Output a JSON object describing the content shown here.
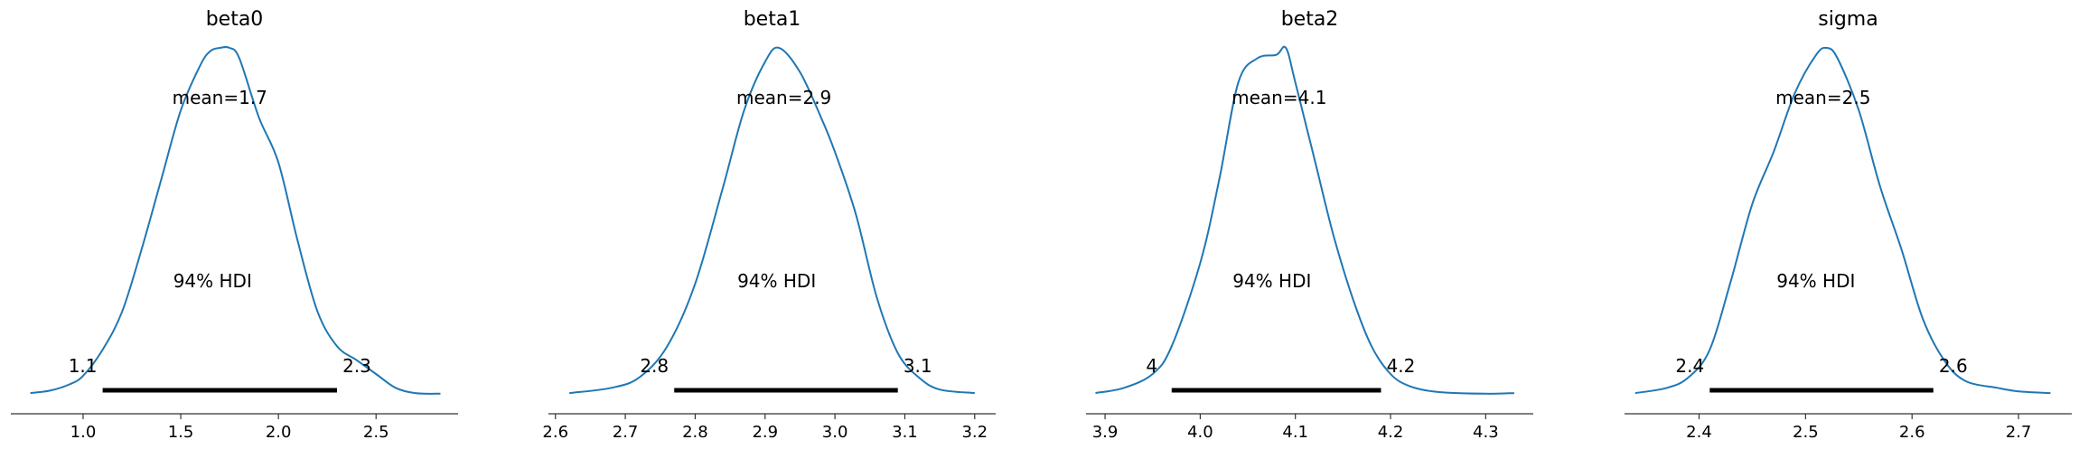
{
  "chart_data": [
    {
      "type": "line",
      "title": "beta0",
      "xlabel": "",
      "ylabel": "",
      "xlim": [
        0.63,
        2.92
      ],
      "xticks": [
        1.0,
        1.5,
        2.0,
        2.5
      ],
      "xtick_labels": [
        "1.0",
        "1.5",
        "2.0",
        "2.5"
      ],
      "mean_label": "mean=1.7",
      "hdi_label": "94% HDI",
      "hdi": [
        1.1,
        2.3
      ],
      "hdi_labels": [
        "1.1",
        "2.3"
      ],
      "density": {
        "x": [
          0.73,
          0.83,
          0.93,
          1.0,
          1.1,
          1.2,
          1.3,
          1.4,
          1.5,
          1.6,
          1.65,
          1.7,
          1.75,
          1.8,
          1.9,
          2.0,
          2.1,
          2.2,
          2.3,
          2.4,
          2.5,
          2.6,
          2.7,
          2.83
        ],
        "y": [
          0.005,
          0.012,
          0.03,
          0.055,
          0.13,
          0.24,
          0.42,
          0.62,
          0.82,
          0.95,
          0.99,
          1.0,
          1.0,
          0.97,
          0.8,
          0.67,
          0.44,
          0.24,
          0.14,
          0.1,
          0.06,
          0.02,
          0.005,
          0.003
        ]
      }
    },
    {
      "type": "line",
      "title": "beta1",
      "xlabel": "",
      "ylabel": "",
      "xlim": [
        2.59,
        3.23
      ],
      "xticks": [
        2.6,
        2.7,
        2.8,
        2.9,
        3.0,
        3.1,
        3.2
      ],
      "xtick_labels": [
        "2.6",
        "2.7",
        "2.8",
        "2.9",
        "3.0",
        "3.1",
        "3.2"
      ],
      "mean_label": "mean=2.9",
      "hdi_label": "94% HDI",
      "hdi": [
        2.77,
        3.09
      ],
      "hdi_labels": [
        "2.8",
        "3.1"
      ],
      "density": {
        "x": [
          2.62,
          2.68,
          2.72,
          2.76,
          2.8,
          2.84,
          2.87,
          2.9,
          2.92,
          2.95,
          2.98,
          3.0,
          3.03,
          3.06,
          3.09,
          3.12,
          3.15,
          3.2
        ],
        "y": [
          0.005,
          0.02,
          0.05,
          0.14,
          0.32,
          0.6,
          0.82,
          0.96,
          1.0,
          0.93,
          0.8,
          0.7,
          0.52,
          0.28,
          0.12,
          0.05,
          0.015,
          0.005
        ]
      }
    },
    {
      "type": "line",
      "title": "beta2",
      "xlabel": "",
      "ylabel": "",
      "xlim": [
        3.88,
        4.35
      ],
      "xticks": [
        3.9,
        4.0,
        4.1,
        4.2,
        4.3
      ],
      "xtick_labels": [
        "3.9",
        "4.0",
        "4.1",
        "4.2",
        "4.3"
      ],
      "mean_label": "mean=4.1",
      "hdi_label": "94% HDI",
      "hdi": [
        3.97,
        4.19
      ],
      "hdi_labels": [
        "4",
        "4.2"
      ],
      "density": {
        "x": [
          3.89,
          3.92,
          3.95,
          3.97,
          4.0,
          4.02,
          4.04,
          4.06,
          4.08,
          4.09,
          4.1,
          4.12,
          4.14,
          4.16,
          4.18,
          4.2,
          4.22,
          4.25,
          4.3,
          4.33
        ],
        "y": [
          0.005,
          0.02,
          0.06,
          0.14,
          0.38,
          0.62,
          0.9,
          0.97,
          0.98,
          1.0,
          0.9,
          0.68,
          0.46,
          0.28,
          0.14,
          0.06,
          0.025,
          0.008,
          0.003,
          0.005
        ]
      }
    },
    {
      "type": "line",
      "title": "sigma",
      "xlabel": "",
      "ylabel": "",
      "xlim": [
        2.33,
        2.75
      ],
      "xticks": [
        2.4,
        2.5,
        2.6,
        2.7
      ],
      "xtick_labels": [
        "2.4",
        "2.5",
        "2.6",
        "2.7"
      ],
      "mean_label": "mean=2.5",
      "hdi_label": "94% HDI",
      "hdi": [
        2.41,
        2.62
      ],
      "hdi_labels": [
        "2.4",
        "2.6"
      ],
      "density": {
        "x": [
          2.34,
          2.37,
          2.39,
          2.41,
          2.43,
          2.45,
          2.47,
          2.49,
          2.51,
          2.52,
          2.53,
          2.55,
          2.57,
          2.59,
          2.61,
          2.63,
          2.65,
          2.68,
          2.7,
          2.73
        ],
        "y": [
          0.005,
          0.02,
          0.05,
          0.13,
          0.33,
          0.55,
          0.7,
          0.87,
          0.98,
          1.0,
          0.97,
          0.82,
          0.6,
          0.42,
          0.22,
          0.1,
          0.04,
          0.02,
          0.01,
          0.005
        ]
      }
    }
  ],
  "colors": {
    "density_line": "#1f77b4",
    "hdi_bar": "#000000",
    "axis": "#333333"
  }
}
